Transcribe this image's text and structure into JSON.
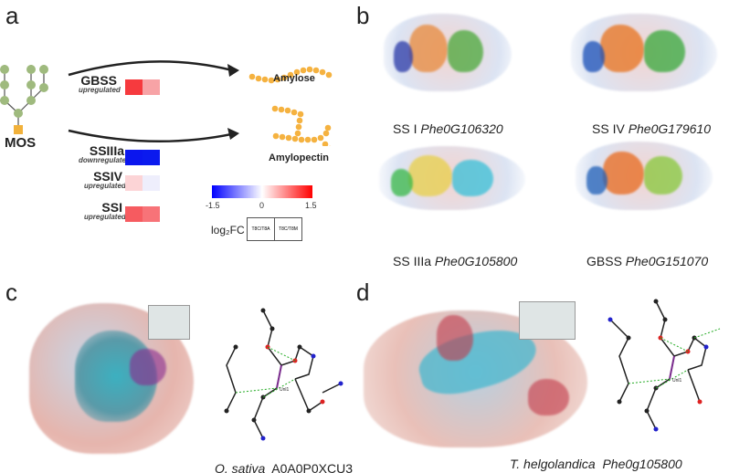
{
  "panels": {
    "a": "a",
    "b": "b",
    "c": "c",
    "d": "d"
  },
  "panel_a": {
    "substrate": "MOS",
    "products": [
      "Amylose",
      "Amylopectin"
    ],
    "genes": [
      {
        "name": "GBSS",
        "regulation": "upregulated",
        "colors": [
          "#f63a3e",
          "#f7a3a6"
        ]
      },
      {
        "name": "SSIIIa",
        "regulation": "downregulated",
        "colors": [
          "#0b16ee",
          "#0b1aee"
        ]
      },
      {
        "name": "SSIV",
        "regulation": "upregulated",
        "colors": [
          "#fcd4d6",
          "#eeeefc"
        ]
      },
      {
        "name": "SSI",
        "regulation": "upregulated",
        "colors": [
          "#f65b60",
          "#f77378"
        ]
      }
    ],
    "colorbar": {
      "ticks": [
        "-1.5",
        "0",
        "1.5"
      ],
      "low": "#0000ff",
      "mid": "#ffffff",
      "high": "#ff0000"
    },
    "legend_label": "log₂FC",
    "legend_columns": [
      "T8C/T8A",
      "T8C/T8M"
    ]
  },
  "panel_b": {
    "structures": [
      {
        "protein": "SS I",
        "gene": "Phe0G106320"
      },
      {
        "protein": "SS IV",
        "gene": "Phe0G179610"
      },
      {
        "protein": "SS IIIa",
        "gene": "Phe0G105800"
      },
      {
        "protein": "GBSS",
        "gene": "Phe0G151070"
      }
    ]
  },
  "panel_c": {
    "species": "O. sativa",
    "accession": "A0A0P0XCU3",
    "ligand": "Unl1"
  },
  "panel_d": {
    "species": "T. helgolandica",
    "accession": "Phe0g105800",
    "ligand": "Unl1"
  }
}
